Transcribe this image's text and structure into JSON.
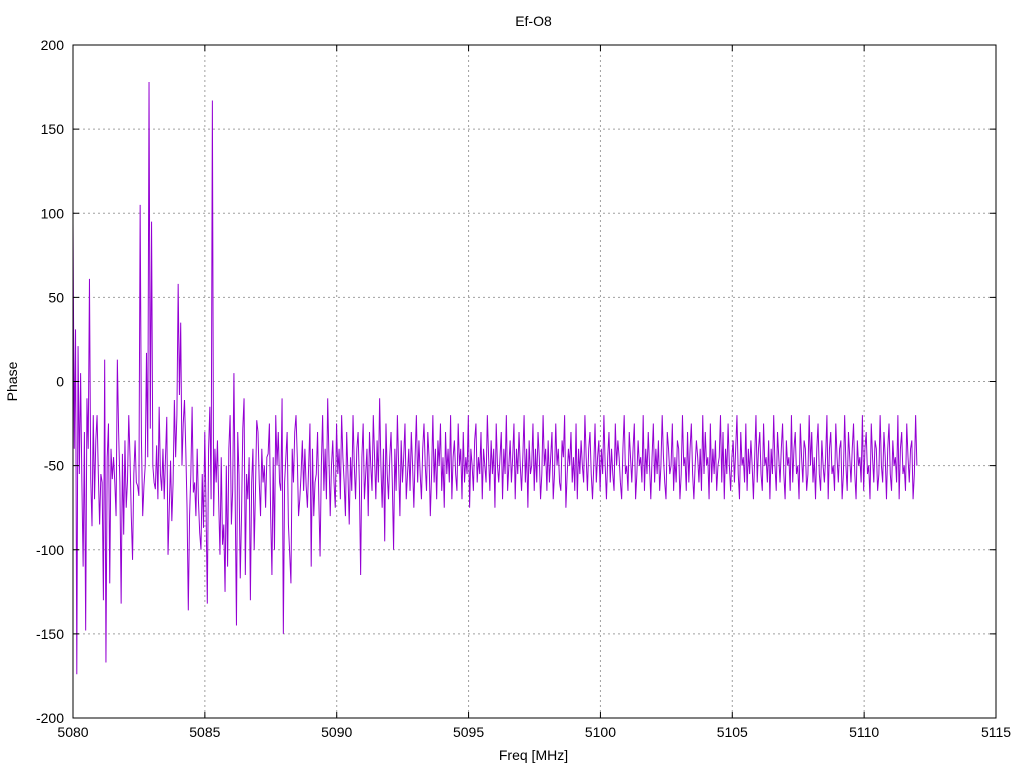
{
  "chart_data": {
    "type": "line",
    "title": "Ef-O8",
    "xlabel": "Freq [MHz]",
    "ylabel": "Phase",
    "xlim": [
      5080,
      5115
    ],
    "ylim": [
      -200,
      200
    ],
    "xticks": [
      5080,
      5085,
      5090,
      5095,
      5100,
      5105,
      5110,
      5115
    ],
    "yticks": [
      -200,
      -150,
      -100,
      -50,
      0,
      50,
      100,
      150,
      200
    ],
    "xtick_labels": [
      "5080",
      "5085",
      "5090",
      "5095",
      "5100",
      "5105",
      "5110",
      "5115"
    ],
    "ytick_labels": [
      "-200",
      "-150",
      "-100",
      "-50",
      "0",
      "50",
      "100",
      "150",
      "200"
    ],
    "grid": true,
    "series": [
      {
        "color": "#9400d3",
        "x_start": 5080,
        "x_end": 5112,
        "values": [
          94,
          -40,
          31,
          -174,
          21,
          -55,
          5,
          -60,
          -110,
          -30,
          -148,
          -10,
          -40,
          61,
          -58,
          -86,
          -20,
          -70,
          -35,
          -20,
          -55,
          -85,
          -55,
          -60,
          -130,
          13,
          -167,
          -45,
          -25,
          -120,
          -40,
          -58,
          -45,
          -60,
          -80,
          13,
          -30,
          -60,
          -132,
          -43,
          -91,
          -35,
          -75,
          -59,
          -20,
          -45,
          -80,
          -106,
          -55,
          -35,
          -60,
          -62,
          -68,
          105,
          -34,
          -80,
          -62,
          -50,
          17,
          -45,
          178,
          -28,
          95,
          -50,
          -60,
          -64,
          -38,
          -70,
          -15,
          -55,
          -65,
          -40,
          -70,
          -45,
          -21,
          -103,
          -75,
          -47,
          -83,
          -60,
          -11,
          -45,
          -20,
          58,
          -8,
          35,
          -50,
          -25,
          -11,
          -40,
          -75,
          -136,
          -80,
          -55,
          -15,
          -66,
          -60,
          -80,
          -40,
          -71,
          -90,
          -100,
          -55,
          -87,
          -30,
          -75,
          -132,
          -40,
          -15,
          -70,
          167,
          -80,
          -40,
          -60,
          -35,
          -72,
          -103,
          -45,
          -97,
          -85,
          -125,
          -50,
          -110,
          -40,
          -20,
          -85,
          -65,
          5,
          -70,
          -145,
          -30,
          -55,
          -117,
          -80,
          -28,
          -10,
          -115,
          -55,
          -70,
          -45,
          -130,
          -60,
          -40,
          -100,
          -65,
          -23,
          -30,
          -60,
          -80,
          -40,
          -60,
          -50,
          -75,
          -45,
          -43,
          -25,
          -80,
          -115,
          -45,
          -100,
          -20,
          -50,
          -30,
          -60,
          -65,
          -10,
          -150,
          -60,
          -45,
          -30,
          -85,
          -102,
          -120,
          -40,
          -60,
          -30,
          -20,
          -45,
          -80,
          -70,
          -55,
          -35,
          -65,
          -40,
          -62,
          -75,
          -50,
          -25,
          -110,
          -40,
          -80,
          -60,
          -55,
          -30,
          -70,
          -104,
          -50,
          -20,
          -65,
          -40,
          -70,
          -10,
          -45,
          -80,
          -50,
          -35,
          -60,
          -75,
          -25,
          -55,
          -40,
          -70,
          -20,
          -45,
          -60,
          -80,
          -30,
          -55,
          -85,
          -45,
          -65,
          -20,
          -50,
          -70,
          -40,
          -30,
          -60,
          -115,
          -45,
          -25,
          -70,
          -55,
          -40,
          -80,
          -30,
          -50,
          -65,
          -20,
          -45,
          -70,
          -35,
          -60,
          -10,
          -50,
          -75,
          -40,
          -95,
          -25,
          -55,
          -70,
          -45,
          -30,
          -60,
          -100,
          -40,
          -65,
          -20,
          -50,
          -80,
          -35,
          -60,
          -45,
          -25,
          -70,
          -55,
          -40,
          -65,
          -30,
          -50,
          -75,
          -45,
          -20,
          -60,
          -35,
          -55,
          -70,
          -40,
          -25,
          -50,
          -65,
          -30,
          -45,
          -80,
          -55,
          -20,
          -60,
          -40,
          -70,
          -35,
          -50,
          -25,
          -65,
          -45,
          -75,
          -30,
          -55,
          -40,
          -60,
          -20,
          -70,
          -45,
          -35,
          -55,
          -65,
          -25,
          -50,
          -40,
          -70,
          -30,
          -60,
          -45,
          -55,
          -20,
          -75,
          -40,
          -50,
          -65,
          -35,
          -25,
          -60,
          -45,
          -55,
          -30,
          -70,
          -40,
          -50,
          -60,
          -20,
          -45,
          -65,
          -35,
          -55,
          -40,
          -75,
          -25,
          -50,
          -60,
          -45,
          -30,
          -70,
          -40,
          -55,
          -20,
          -65,
          -50,
          -35,
          -60,
          -45,
          -25,
          -70,
          -40,
          -55,
          -30,
          -50,
          -65,
          -45,
          -20,
          -60,
          -40,
          -75,
          -35,
          -55,
          -50,
          -25,
          -65,
          -40,
          -60,
          -30,
          -45,
          -70,
          -55,
          -20,
          -50,
          -40,
          -65,
          -35,
          -60,
          -45,
          -30,
          -70,
          -55,
          -25,
          -50,
          -40,
          -60,
          -65,
          -35,
          -45,
          -20,
          -75,
          -55,
          -40,
          -50,
          -30,
          -60,
          -45,
          -65,
          -25,
          -70,
          -40,
          -55,
          -35,
          -50,
          -60,
          -20,
          -45,
          -65,
          -40,
          -30,
          -55,
          -70,
          -50,
          -25,
          -60,
          -45,
          -35,
          -65,
          -40,
          -55,
          -20,
          -50,
          -70,
          -45,
          -30,
          -60,
          -40,
          -55,
          -65,
          -25,
          -50,
          -35,
          -45,
          -60,
          -70,
          -40,
          -20,
          -55,
          -50,
          -65,
          -30,
          -45,
          -60,
          -40,
          -25,
          -70,
          -55,
          -35,
          -50,
          -45,
          -60,
          -20,
          -65,
          -40,
          -55,
          -30,
          -50,
          -70,
          -45,
          -25,
          -60,
          -40,
          -55,
          -35,
          -65,
          -50,
          -20,
          -45,
          -60,
          -70,
          -30,
          -40,
          -55,
          -50,
          -25,
          -65,
          -45,
          -60,
          -35,
          -40,
          -70,
          -55,
          -20,
          -50,
          -45,
          -65,
          -30,
          -60,
          -40,
          -25,
          -55,
          -70,
          -50,
          -35,
          -45,
          -60,
          -40,
          -65,
          -20,
          -55,
          -30,
          -50,
          -45,
          -70,
          -25,
          -60,
          -40,
          -55,
          -35,
          -65,
          -50,
          -45,
          -20,
          -60,
          -30,
          -70,
          -40,
          -55,
          -25,
          -50,
          -65,
          -45,
          -35,
          -60,
          -40,
          -20,
          -55,
          -70,
          -30,
          -50,
          -45,
          -60,
          -25,
          -65,
          -40,
          -55,
          -35,
          -50,
          -70,
          -45,
          -20,
          -60,
          -40,
          -30,
          -55,
          -65,
          -25,
          -50,
          -45,
          -60,
          -35,
          -70,
          -40,
          -55,
          -20,
          -50,
          -65,
          -30,
          -45,
          -60,
          -40,
          -25,
          -55,
          -70,
          -35,
          -50,
          -45,
          -65,
          -20,
          -60,
          -40,
          -30,
          -55,
          -50,
          -70,
          -25,
          -45,
          -60,
          -35,
          -40,
          -65,
          -55,
          -20,
          -50,
          -30,
          -60,
          -45,
          -70,
          -40,
          -25,
          -55,
          -65,
          -35,
          -50,
          -60,
          -45,
          -20,
          -70,
          -40,
          -30,
          -55,
          -50,
          -65,
          -25,
          -45,
          -60,
          -40,
          -35,
          -70,
          -55,
          -20,
          -50,
          -65,
          -30,
          -45,
          -60,
          -40,
          -25,
          -55,
          -70,
          -35,
          -50,
          -45,
          -60,
          -20,
          -65,
          -40,
          -30,
          -55,
          -50,
          -70,
          -25,
          -45,
          -60,
          -35,
          -40,
          -65,
          -55,
          -20,
          -50,
          -60,
          -30,
          -45,
          -70,
          -40,
          -25,
          -55,
          -65,
          -35,
          -50,
          -45,
          -60,
          -20,
          -70,
          -40,
          -30,
          -55,
          -50,
          -65,
          -25,
          -45,
          -60,
          -40,
          -35,
          -70,
          -55,
          -20,
          -50
        ]
      }
    ]
  }
}
